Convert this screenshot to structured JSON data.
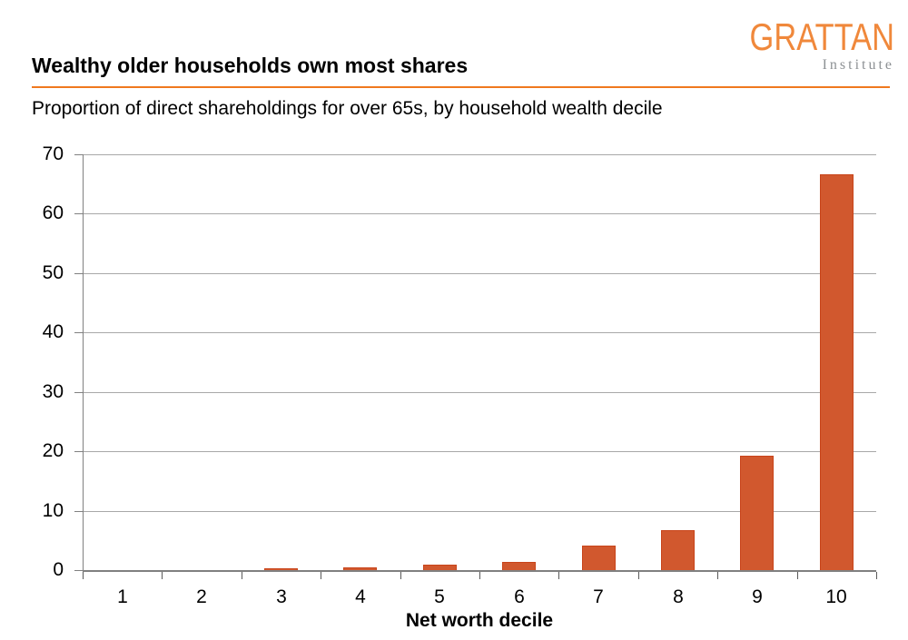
{
  "logo": {
    "wordmark": "GRATTAN",
    "subtitle": "Institute",
    "wordmark_color": "#F0883B",
    "subtitle_color": "#8D9194"
  },
  "header": {
    "title": "Wealthy older households own most shares",
    "rule_color": "#F0791F",
    "subtitle": "Proportion of direct shareholdings for over 65s, by household wealth decile"
  },
  "chart_data": {
    "type": "bar",
    "title": "Wealthy older households own most shares",
    "subtitle": "Proportion of direct shareholdings for over 65s, by household wealth decile",
    "categories": [
      "1",
      "2",
      "3",
      "4",
      "5",
      "6",
      "7",
      "8",
      "9",
      "10"
    ],
    "values": [
      0,
      0,
      0.3,
      0.5,
      0.9,
      1.4,
      4.2,
      6.8,
      19.3,
      66.7
    ],
    "xlabel": "Net worth decile",
    "ylabel": "",
    "ylim": [
      0,
      70
    ],
    "yticks": [
      0,
      10,
      20,
      30,
      40,
      50,
      60,
      70
    ],
    "grid": "horizontal",
    "legend": "none",
    "bar_color": "#D1582E",
    "bar_border_color": "#C8441A",
    "gridline_color": "#A8A8A8",
    "axis_color": "#808080",
    "tick_color": "#595959"
  }
}
